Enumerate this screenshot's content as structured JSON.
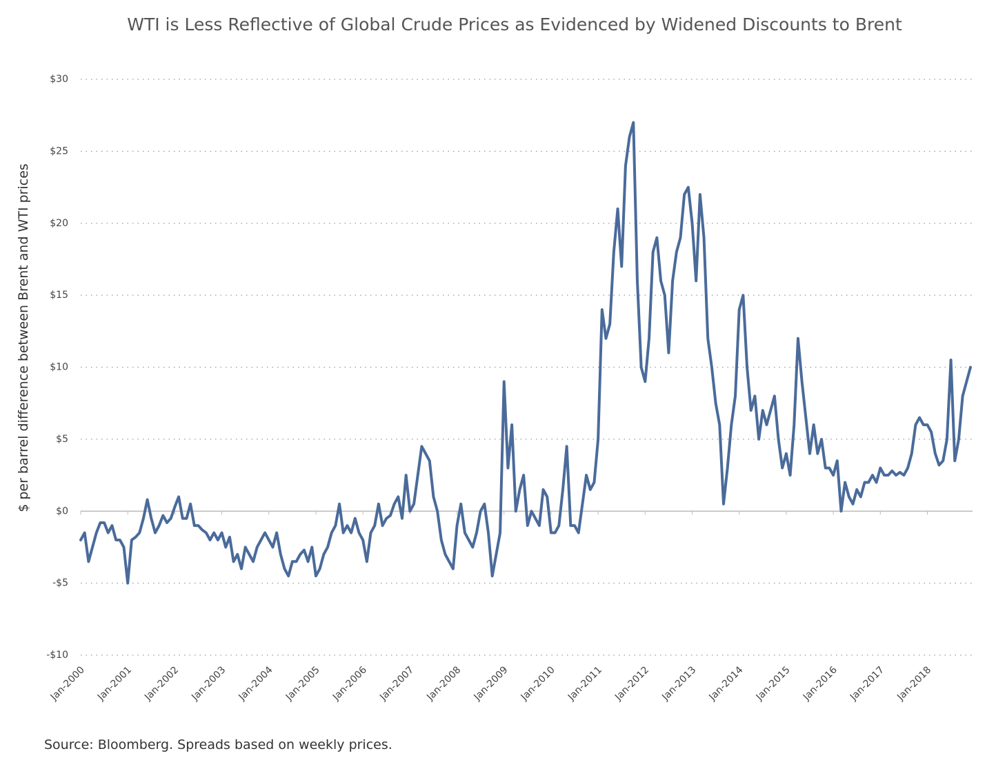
{
  "chart_data": {
    "type": "line",
    "title": "WTI is Less Reflective of Global Crude Prices as Evidenced by Widened Discounts to Brent",
    "y_label": "$ per barrel difference between Brent and WTI prices",
    "source": "Source: Bloomberg. Spreads based on weekly prices.",
    "color": "#4a6b9a",
    "grid": true,
    "xlim": [
      "2000-01",
      "2018-12"
    ],
    "ylim": [
      -10,
      30
    ],
    "yticks": [
      {
        "value": -10,
        "label": "-$10"
      },
      {
        "value": -5,
        "label": "-$5"
      },
      {
        "value": 0,
        "label": "$0"
      },
      {
        "value": 5,
        "label": "$5"
      },
      {
        "value": 10,
        "label": "$10"
      },
      {
        "value": 15,
        "label": "$15"
      },
      {
        "value": 20,
        "label": "$20"
      },
      {
        "value": 25,
        "label": "$25"
      },
      {
        "value": 30,
        "label": "$30"
      }
    ],
    "xticks": [
      {
        "value": "2000-01",
        "label": "Jan-2000"
      },
      {
        "value": "2001-01",
        "label": "Jan-2001"
      },
      {
        "value": "2002-01",
        "label": "Jan-2002"
      },
      {
        "value": "2003-01",
        "label": "Jan-2003"
      },
      {
        "value": "2004-01",
        "label": "Jan-2004"
      },
      {
        "value": "2005-01",
        "label": "Jan-2005"
      },
      {
        "value": "2006-01",
        "label": "Jan-2006"
      },
      {
        "value": "2007-01",
        "label": "Jan-2007"
      },
      {
        "value": "2008-01",
        "label": "Jan-2008"
      },
      {
        "value": "2009-01",
        "label": "Jan-2009"
      },
      {
        "value": "2010-01",
        "label": "Jan-2010"
      },
      {
        "value": "2011-01",
        "label": "Jan-2011"
      },
      {
        "value": "2012-01",
        "label": "Jan-2012"
      },
      {
        "value": "2013-01",
        "label": "Jan-2013"
      },
      {
        "value": "2014-01",
        "label": "Jan-2014"
      },
      {
        "value": "2015-01",
        "label": "Jan-2015"
      },
      {
        "value": "2016-01",
        "label": "Jan-2016"
      },
      {
        "value": "2017-01",
        "label": "Jan-2017"
      },
      {
        "value": "2018-01",
        "label": "Jan-2018"
      }
    ],
    "x": [
      "2000-01",
      "2000-02",
      "2000-03",
      "2000-04",
      "2000-05",
      "2000-06",
      "2000-07",
      "2000-08",
      "2000-09",
      "2000-10",
      "2000-11",
      "2000-12",
      "2001-01",
      "2001-02",
      "2001-03",
      "2001-04",
      "2001-05",
      "2001-06",
      "2001-07",
      "2001-08",
      "2001-09",
      "2001-10",
      "2001-11",
      "2001-12",
      "2002-01",
      "2002-02",
      "2002-03",
      "2002-04",
      "2002-05",
      "2002-06",
      "2002-07",
      "2002-08",
      "2002-09",
      "2002-10",
      "2002-11",
      "2002-12",
      "2003-01",
      "2003-02",
      "2003-03",
      "2003-04",
      "2003-05",
      "2003-06",
      "2003-07",
      "2003-08",
      "2003-09",
      "2003-10",
      "2003-11",
      "2003-12",
      "2004-01",
      "2004-02",
      "2004-03",
      "2004-04",
      "2004-05",
      "2004-06",
      "2004-07",
      "2004-08",
      "2004-09",
      "2004-10",
      "2004-11",
      "2004-12",
      "2005-01",
      "2005-02",
      "2005-03",
      "2005-04",
      "2005-05",
      "2005-06",
      "2005-07",
      "2005-08",
      "2005-09",
      "2005-10",
      "2005-11",
      "2005-12",
      "2006-01",
      "2006-02",
      "2006-03",
      "2006-04",
      "2006-05",
      "2006-06",
      "2006-07",
      "2006-08",
      "2006-09",
      "2006-10",
      "2006-11",
      "2006-12",
      "2007-01",
      "2007-02",
      "2007-03",
      "2007-04",
      "2007-05",
      "2007-06",
      "2007-07",
      "2007-08",
      "2007-09",
      "2007-10",
      "2007-11",
      "2007-12",
      "2008-01",
      "2008-02",
      "2008-03",
      "2008-04",
      "2008-05",
      "2008-06",
      "2008-07",
      "2008-08",
      "2008-09",
      "2008-10",
      "2008-11",
      "2008-12",
      "2009-01",
      "2009-02",
      "2009-03",
      "2009-04",
      "2009-05",
      "2009-06",
      "2009-07",
      "2009-08",
      "2009-09",
      "2009-10",
      "2009-11",
      "2009-12",
      "2010-01",
      "2010-02",
      "2010-03",
      "2010-04",
      "2010-05",
      "2010-06",
      "2010-07",
      "2010-08",
      "2010-09",
      "2010-10",
      "2010-11",
      "2010-12",
      "2011-01",
      "2011-02",
      "2011-03",
      "2011-04",
      "2011-05",
      "2011-06",
      "2011-07",
      "2011-08",
      "2011-09",
      "2011-10",
      "2011-11",
      "2011-12",
      "2012-01",
      "2012-02",
      "2012-03",
      "2012-04",
      "2012-05",
      "2012-06",
      "2012-07",
      "2012-08",
      "2012-09",
      "2012-10",
      "2012-11",
      "2012-12",
      "2013-01",
      "2013-02",
      "2013-03",
      "2013-04",
      "2013-05",
      "2013-06",
      "2013-07",
      "2013-08",
      "2013-09",
      "2013-10",
      "2013-11",
      "2013-12",
      "2014-01",
      "2014-02",
      "2014-03",
      "2014-04",
      "2014-05",
      "2014-06",
      "2014-07",
      "2014-08",
      "2014-09",
      "2014-10",
      "2014-11",
      "2014-12",
      "2015-01",
      "2015-02",
      "2015-03",
      "2015-04",
      "2015-05",
      "2015-06",
      "2015-07",
      "2015-08",
      "2015-09",
      "2015-10",
      "2015-11",
      "2015-12",
      "2016-01",
      "2016-02",
      "2016-03",
      "2016-04",
      "2016-05",
      "2016-06",
      "2016-07",
      "2016-08",
      "2016-09",
      "2016-10",
      "2016-11",
      "2016-12",
      "2017-01",
      "2017-02",
      "2017-03",
      "2017-04",
      "2017-05",
      "2017-06",
      "2017-07",
      "2017-08",
      "2017-09",
      "2017-10",
      "2017-11",
      "2017-12",
      "2018-01",
      "2018-02",
      "2018-03",
      "2018-04",
      "2018-05",
      "2018-06",
      "2018-07",
      "2018-08",
      "2018-09",
      "2018-10",
      "2018-11",
      "2018-12"
    ],
    "values": [
      -2,
      -1.5,
      -3.5,
      -2.5,
      -1.5,
      -0.8,
      -0.8,
      -1.5,
      -1,
      -2,
      -2,
      -2.5,
      -5,
      -2,
      -1.8,
      -1.5,
      -0.5,
      0.8,
      -0.5,
      -1.5,
      -1,
      -0.3,
      -0.8,
      -0.5,
      0.3,
      1,
      -0.5,
      -0.5,
      0.5,
      -1,
      -1,
      -1.3,
      -1.5,
      -2,
      -1.5,
      -2,
      -1.5,
      -2.5,
      -1.8,
      -3.5,
      -3,
      -4,
      -2.5,
      -3,
      -3.5,
      -2.5,
      -2,
      -1.5,
      -2,
      -2.5,
      -1.5,
      -3,
      -4,
      -4.5,
      -3.5,
      -3.5,
      -3,
      -2.7,
      -3.5,
      -2.5,
      -4.5,
      -4,
      -3,
      -2.5,
      -1.5,
      -1,
      0.5,
      -1.5,
      -1,
      -1.5,
      -0.5,
      -1.5,
      -2,
      -3.5,
      -1.5,
      -1,
      0.5,
      -1,
      -0.5,
      -0.3,
      0.5,
      1,
      -0.5,
      2.5,
      0,
      0.5,
      2.5,
      4.5,
      4,
      3.5,
      1,
      0,
      -2,
      -3,
      -3.5,
      -4,
      -1,
      0.5,
      -1.5,
      -2,
      -2.5,
      -1.5,
      0,
      0.5,
      -1.5,
      -4.5,
      -3,
      -1.5,
      9,
      3,
      6,
      0,
      1.5,
      2.5,
      -1,
      0,
      -0.5,
      -1,
      1.5,
      1,
      -1.5,
      -1.5,
      -1,
      1.5,
      4.5,
      -1,
      -1,
      -1.5,
      0.5,
      2.5,
      1.5,
      2,
      5,
      14,
      12,
      13,
      18,
      21,
      17,
      24,
      26,
      27,
      16,
      10,
      9,
      12,
      18,
      19,
      16,
      15,
      11,
      16,
      18,
      19,
      22,
      22.5,
      20,
      16,
      22,
      19,
      12,
      10,
      7.5,
      6,
      0.5,
      3,
      6,
      8,
      14,
      15,
      10,
      7,
      8,
      5,
      7,
      6,
      7,
      8,
      5,
      3,
      4,
      2.5,
      6,
      12,
      9,
      6.5,
      4,
      6,
      4,
      5,
      3,
      3,
      2.5,
      3.5,
      0,
      2,
      1,
      0.5,
      1.5,
      1,
      2,
      2,
      2.5,
      2,
      3,
      2.5,
      2.5,
      2.8,
      2.5,
      2.7,
      2.5,
      3,
      4,
      6,
      6.5,
      6,
      6,
      5.5,
      4,
      3.2,
      3.5,
      5,
      10.5,
      3.5,
      5,
      8,
      9,
      10
    ]
  }
}
